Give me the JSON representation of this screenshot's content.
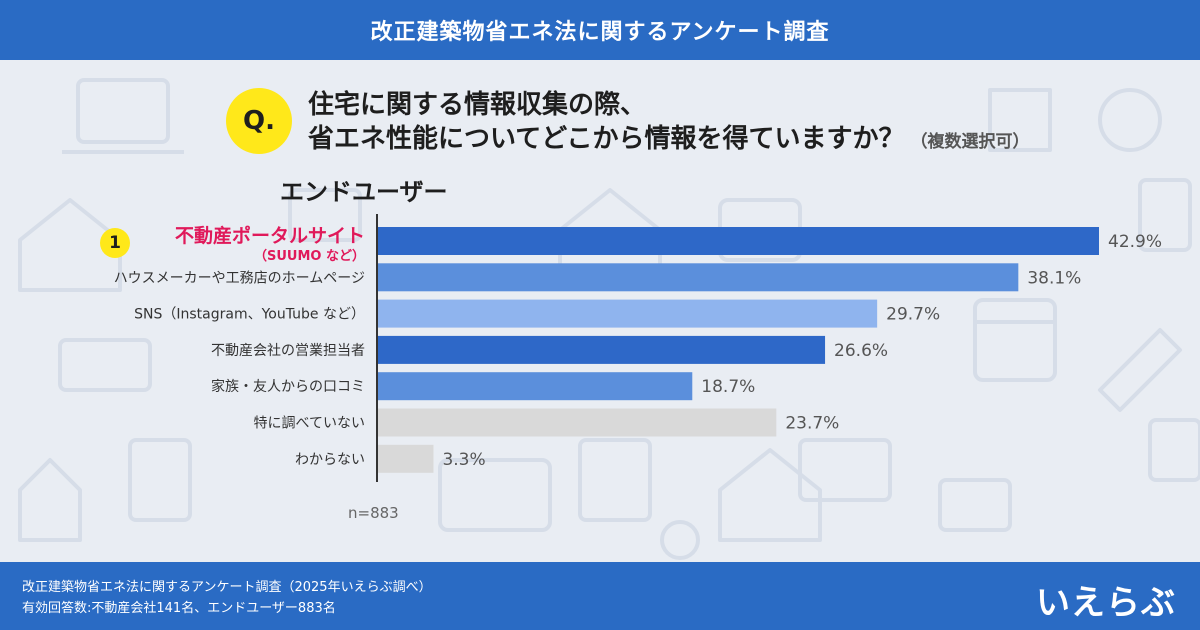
{
  "header": {
    "title": "改正建築物省エネ法に関するアンケート調査"
  },
  "question": {
    "mark": "Q.",
    "line1": "住宅に関する情報収集の際、",
    "line2": "省エネ性能についてどこから情報を得ていますか？",
    "note": "（複数選択可）"
  },
  "segment": "エンドユーザー",
  "rank_badge": "1",
  "sample_size": "n=883",
  "footer": {
    "line1": "改正建築物省エネ法に関するアンケート調査（2025年いえらぶ調べ）",
    "line2": "有効回答数:不動産会社141名、エンドユーザー883名",
    "logo": "いえらぶ"
  },
  "colors": {
    "header_bg": "#2a6bc4",
    "accent_pink": "#e0195a",
    "highlight_yellow": "#ffe81a",
    "bar_dark_blue": "#2e68c8",
    "bar_mid_blue": "#5b8fdc",
    "bar_light_blue": "#8fb4ee",
    "bar_gray": "#d9d9d9"
  },
  "chart_data": {
    "type": "bar",
    "orientation": "horizontal",
    "categories": [
      "不動産ポータルサイト",
      "ハウスメーカーや工務店のホームページ",
      "SNS（Instagram、YouTube など）",
      "不動産会社の営業担当者",
      "家族・友人からの口コミ",
      "特に調べていない",
      "わからない"
    ],
    "category_subtitles": [
      "（SUUMO など）",
      "",
      "",
      "",
      "",
      "",
      ""
    ],
    "values": [
      42.9,
      38.1,
      29.7,
      26.6,
      18.7,
      23.7,
      3.3
    ],
    "value_unit": "%",
    "bar_colors": [
      "#2e68c8",
      "#5b8fdc",
      "#8fb4ee",
      "#2e68c8",
      "#5b8fdc",
      "#d9d9d9",
      "#d9d9d9"
    ],
    "highlight_index": 0,
    "xlim": [
      0,
      50
    ],
    "grid": false,
    "legend": "none"
  }
}
